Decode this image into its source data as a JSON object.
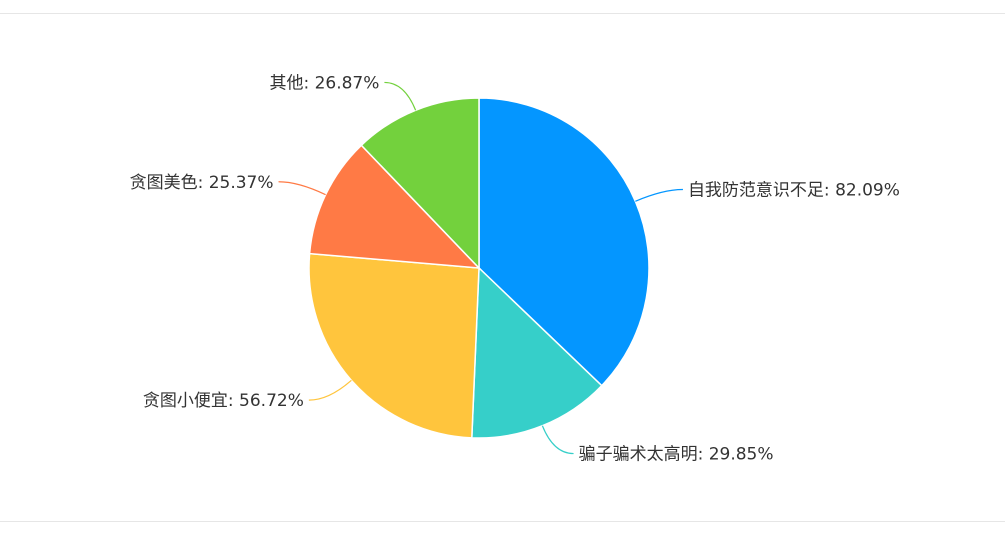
{
  "chart_data": {
    "type": "pie",
    "categories": [
      "自我防范意识不足",
      "骗子骗术太高明",
      "贪图小便宜",
      "贪图美色",
      "其他"
    ],
    "values": [
      82.09,
      29.85,
      56.72,
      25.37,
      26.87
    ],
    "labels": [
      "自我防范意识不足: 82.09%",
      "骗子骗术太高明: 29.85%",
      "贪图小便宜: 56.72%",
      "贪图美色: 25.37%",
      "其他: 26.87%"
    ],
    "colors": [
      "#0496ff",
      "#36cfc9",
      "#ffc53d",
      "#ff7a45",
      "#73d13d"
    ],
    "start_angle": "top",
    "direction": "clockwise",
    "legend": "none"
  }
}
